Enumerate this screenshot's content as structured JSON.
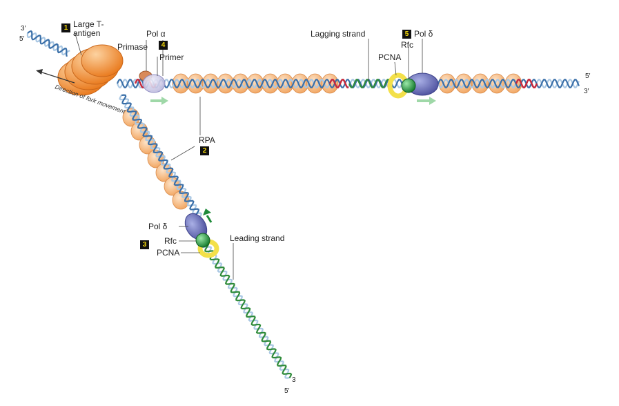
{
  "labels": {
    "large_t_antigen": "Large T-\nantigen",
    "pol_alpha": "Pol α",
    "primase": "Primase",
    "primer": "Primer",
    "lagging_strand": "Lagging strand",
    "pol_delta_top": "Pol δ",
    "rfc_top": "Rfc",
    "pcna_top": "PCNA",
    "rpa": "RPA",
    "pol_delta_bottom": "Pol δ",
    "rfc_bottom": "Rfc",
    "pcna_bottom": "PCNA",
    "leading_strand": "Leading strand",
    "direction": "Direction of fork movement",
    "end_3_top_left": "3′",
    "end_5_top_left": "5′",
    "end_5_right": "5′",
    "end_3_right": "3′",
    "end_3_bottom": "3",
    "end_5_bottom": "5′"
  },
  "steps": {
    "s1": "1",
    "s2": "2",
    "s3": "3",
    "s4": "4",
    "s5": "5"
  },
  "colors": {
    "rpa": "#f4b47e",
    "rpa_edge": "#d98a4a",
    "antigen": "#f08a2a",
    "dna_blue": "#3a6fa8",
    "dna_light": "#a9c7e3",
    "dna_green": "#2e8b3a",
    "rna_red": "#c8283a",
    "pol_delta": "#6a6fb5",
    "pcna": "#f3e04a",
    "rfc": "#2a9a3e",
    "arrow_light_green": "#9fd8a8",
    "arrow_green": "#1e8a3a"
  }
}
